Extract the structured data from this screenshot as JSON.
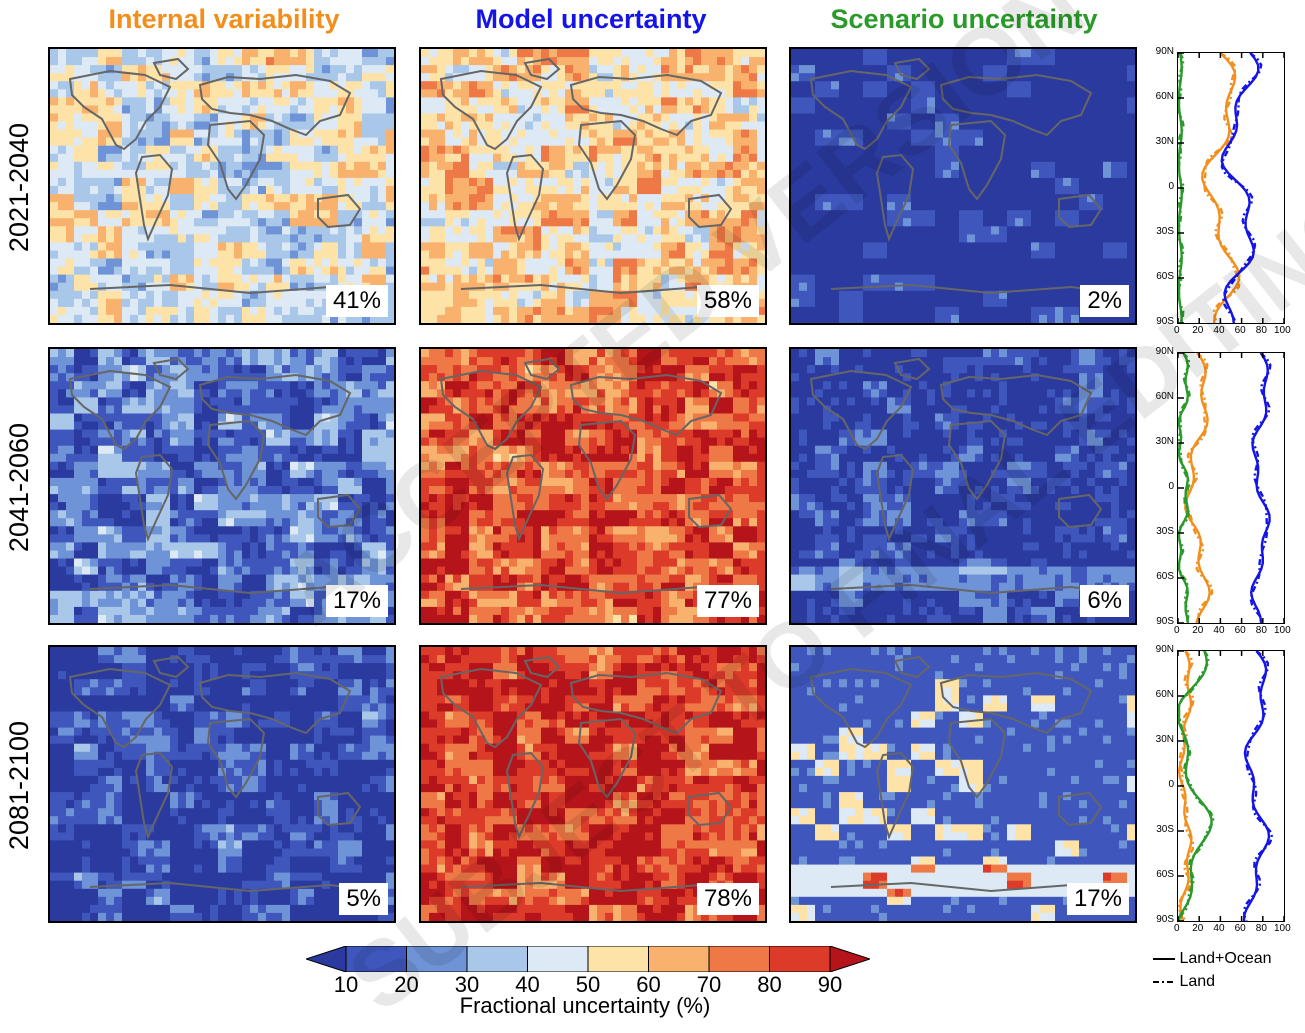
{
  "titles": {
    "internal": {
      "text": "Internal variability",
      "color": "#f28e1c"
    },
    "model": {
      "text": "Model uncertainty",
      "color": "#1414e6"
    },
    "scenario": {
      "text": "Scenario uncertainty",
      "color": "#2a9a2a"
    }
  },
  "periods": [
    "2021-2040",
    "2041-2060",
    "2081-2100"
  ],
  "percentages": {
    "internal": [
      "41%",
      "17%",
      "5%"
    ],
    "model": [
      "58%",
      "77%",
      "78%"
    ],
    "scenario": [
      "2%",
      "6%",
      "17%"
    ]
  },
  "profile_axis": {
    "lat_labels": [
      "90N",
      "60N",
      "30N",
      "0",
      "30S",
      "60S",
      "90S"
    ],
    "x_ticks": [
      "0",
      "20",
      "40",
      "60",
      "80",
      "100"
    ]
  },
  "colorbar": {
    "title": "Fractional uncertainty (%)",
    "ticks": [
      "10",
      "20",
      "30",
      "40",
      "50",
      "60",
      "70",
      "80",
      "90"
    ],
    "colors": [
      "#2b3a9e",
      "#3f57bd",
      "#6e93d6",
      "#a9c7e8",
      "#dde9f5",
      "#fde3a7",
      "#f8b26e",
      "#ee7846",
      "#dc3b2a",
      "#b5141b"
    ]
  },
  "legend": {
    "solid": "Land+Ocean",
    "dashed": "Land"
  },
  "watermark": [
    "ACCEPTED VERSION",
    "SUBJECT TO FINAL EDITING"
  ]
}
